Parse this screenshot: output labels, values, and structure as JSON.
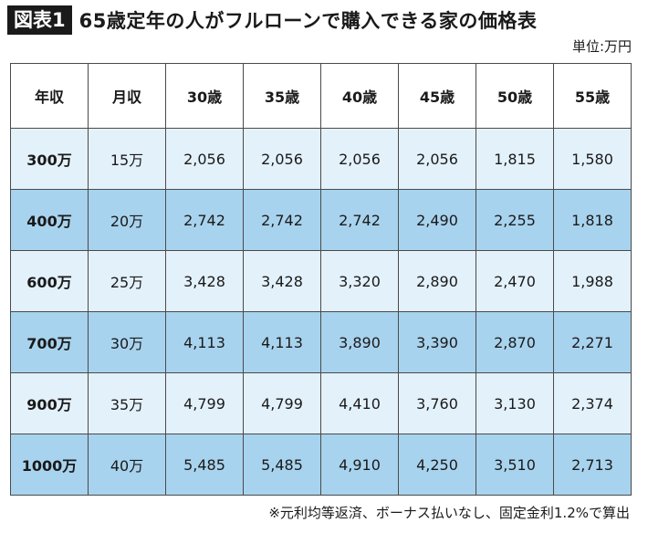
{
  "title": {
    "badge": "図表1",
    "text": "65歳定年の人がフルローンで購入できる家の価格表"
  },
  "unit": "単位:万円",
  "table": {
    "headers": [
      "年収",
      "月収",
      "30歳",
      "35歳",
      "40歳",
      "45歳",
      "50歳",
      "55歳"
    ],
    "rows": [
      [
        "300万",
        "15万",
        "2,056",
        "2,056",
        "2,056",
        "2,056",
        "1,815",
        "1,580"
      ],
      [
        "400万",
        "20万",
        "2,742",
        "2,742",
        "2,742",
        "2,490",
        "2,255",
        "1,818"
      ],
      [
        "600万",
        "25万",
        "3,428",
        "3,428",
        "3,320",
        "2,890",
        "2,470",
        "1,988"
      ],
      [
        "700万",
        "30万",
        "4,113",
        "4,113",
        "3,890",
        "3,390",
        "2,870",
        "2,271"
      ],
      [
        "900万",
        "35万",
        "4,799",
        "4,799",
        "4,410",
        "3,760",
        "3,130",
        "2,374"
      ],
      [
        "1000万",
        "40万",
        "5,485",
        "5,485",
        "4,910",
        "4,250",
        "3,510",
        "2,713"
      ]
    ],
    "colors": {
      "light_row": "#e3f1fb",
      "dark_row": "#a8d3ee"
    }
  },
  "note": "※元利均等返済、ボーナス払いなし、固定金利1.2%で算出"
}
